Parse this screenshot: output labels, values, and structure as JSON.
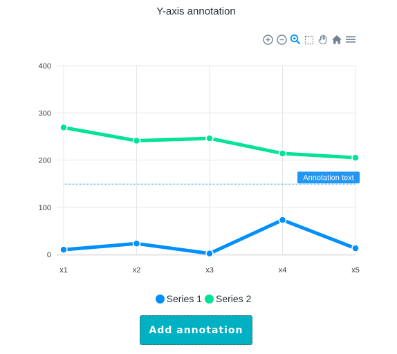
{
  "chart_data": {
    "type": "line",
    "title": "Y-axis annotation",
    "categories": [
      "x1",
      "x2",
      "x3",
      "x4",
      "x5"
    ],
    "series": [
      {
        "name": "Series 1",
        "values": [
          10,
          23,
          2,
          73,
          13
        ],
        "color": "#008ffb"
      },
      {
        "name": "Series 2",
        "values": [
          269,
          241,
          246,
          214,
          205
        ],
        "color": "#00e396"
      }
    ],
    "ylim": [
      0,
      400
    ],
    "yticks": [
      0,
      100,
      200,
      300,
      400
    ],
    "grid": true,
    "legend": "bottom",
    "annotations": [
      {
        "axis": "y",
        "value": 149,
        "label": "Annotation text",
        "line_color": "#2196f3",
        "label_color": "#2196f3"
      }
    ]
  },
  "toolbar": {
    "icons": [
      "zoom-in-icon",
      "zoom-out-icon",
      "zoom-icon",
      "selection-icon",
      "pan-icon",
      "home-icon",
      "menu-icon"
    ]
  },
  "button": {
    "label": "Add annotation",
    "color": "#00b1c3"
  }
}
